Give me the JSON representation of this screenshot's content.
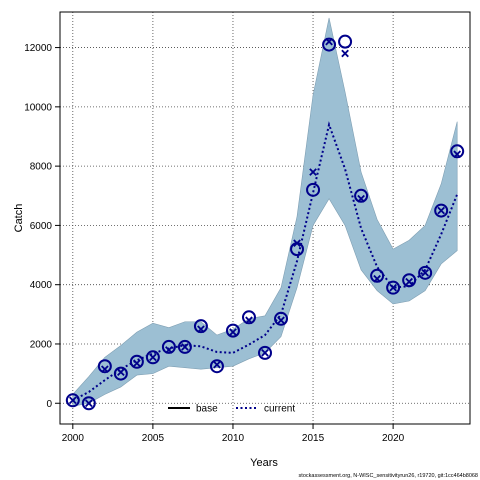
{
  "chart_data": {
    "type": "line",
    "xlabel": "Years",
    "ylabel": "Catch",
    "xlim": [
      1999.2,
      2024.8
    ],
    "ylim": [
      -700,
      13200
    ],
    "x_ticks": [
      2000,
      2005,
      2010,
      2015,
      2020
    ],
    "y_ticks": [
      0,
      2000,
      4000,
      6000,
      8000,
      10000,
      12000
    ],
    "grid": true,
    "legend_placement": "bottom-center",
    "legend": [
      {
        "label": "base",
        "style": "solid",
        "color": "#000000"
      },
      {
        "label": "current",
        "style": "dashed",
        "color": "#00008B"
      }
    ],
    "colors": {
      "band": "#9CBFD3",
      "line": "#00008B",
      "markers": "#00008B"
    },
    "years": [
      2000,
      2001,
      2002,
      2003,
      2004,
      2005,
      2006,
      2007,
      2008,
      2009,
      2010,
      2011,
      2012,
      2013,
      2014,
      2015,
      2016,
      2017,
      2018,
      2019,
      2020,
      2021,
      2022,
      2023,
      2024
    ],
    "observed_catch": [
      100,
      0,
      1250,
      1000,
      1400,
      1550,
      1900,
      1900,
      2600,
      1250,
      2450,
      2900,
      1700,
      2850,
      5200,
      7200,
      12100,
      12200,
      7000,
      4300,
      3900,
      4150,
      4400,
      6500,
      8500
    ],
    "predicted_catch": [
      100,
      0,
      1150,
      1050,
      1350,
      1550,
      1800,
      1900,
      2500,
      1300,
      2400,
      2800,
      1700,
      2800,
      5400,
      7800,
      12200,
      11800,
      6900,
      4200,
      3900,
      4100,
      4400,
      6500,
      8400
    ],
    "series": [
      {
        "name": "current",
        "x": [
          2000,
          2001,
          2002,
          2003,
          2004,
          2005,
          2006,
          2007,
          2008,
          2009,
          2010,
          2011,
          2012,
          2013,
          2014,
          2015,
          2016,
          2017,
          2018,
          2019,
          2020,
          2021,
          2022,
          2023,
          2024
        ],
        "values": [
          100,
          380,
          780,
          1150,
          1450,
          1680,
          1850,
          1960,
          1920,
          1730,
          1700,
          1980,
          2300,
          3000,
          4800,
          7100,
          9400,
          7900,
          5900,
          4600,
          3900,
          3950,
          4500,
          5700,
          7050
        ]
      }
    ],
    "band_upper": [
      300,
      900,
      1550,
      1950,
      2400,
      2700,
      2550,
      2750,
      2750,
      2300,
      2500,
      2850,
      2950,
      3900,
      6300,
      10400,
      13000,
      10500,
      7800,
      6200,
      5200,
      5500,
      6000,
      7400,
      9500
    ],
    "band_lower": [
      -100,
      0,
      300,
      550,
      950,
      1000,
      1250,
      1200,
      1150,
      1200,
      1250,
      1500,
      1700,
      2250,
      3900,
      6000,
      6900,
      6000,
      4500,
      3800,
      3350,
      3450,
      3800,
      4700,
      5150
    ]
  },
  "footer": "stockassessment.org, N-WISC_sensitivityrun26, r19720, git:1cc464b8068"
}
